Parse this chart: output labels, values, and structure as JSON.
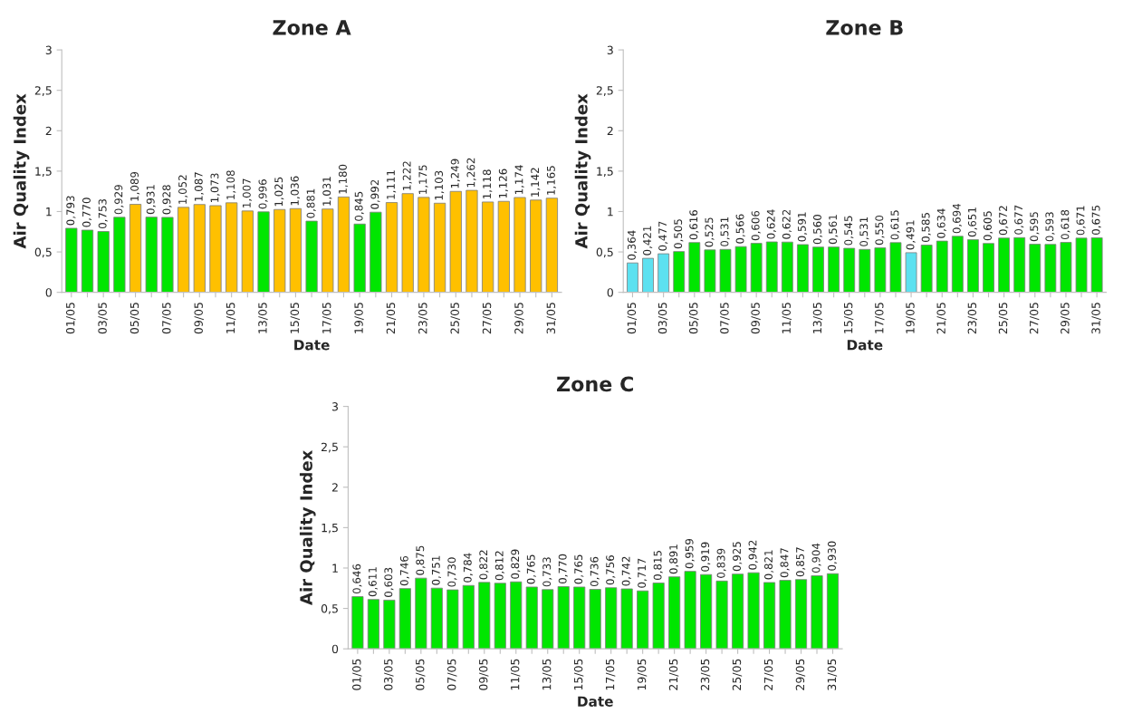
{
  "chart_data": [
    {
      "type": "bar",
      "title": "Zone A",
      "xlabel": "Date",
      "ylabel": "Air Quality Index",
      "categories": [
        "01/05",
        null,
        "03/05",
        null,
        "05/05",
        null,
        "07/05",
        null,
        "09/05",
        null,
        "11/05",
        null,
        "13/05",
        null,
        "15/05",
        null,
        "17/05",
        null,
        "19/05",
        null,
        "21/05",
        null,
        "23/05",
        null,
        "25/05",
        null,
        "27/05",
        null,
        "29/05",
        null,
        "31/05"
      ],
      "values": [
        0.793,
        0.77,
        0.753,
        0.929,
        1.089,
        0.931,
        0.928,
        1.052,
        1.087,
        1.073,
        1.108,
        1.007,
        0.996,
        1.025,
        1.036,
        0.881,
        1.031,
        1.18,
        0.845,
        0.992,
        1.111,
        1.222,
        1.175,
        1.103,
        1.249,
        1.262,
        1.118,
        1.126,
        1.174,
        1.142,
        1.165
      ],
      "value_labels": [
        "0,793",
        "0,770",
        "0,753",
        "0,929",
        "1,089",
        "0,931",
        "0,928",
        "1,052",
        "1,087",
        "1,073",
        "1,108",
        "1,007",
        "0,996",
        "1,025",
        "1,036",
        "0,881",
        "1,031",
        "1,180",
        "0,845",
        "0,992",
        "1,111",
        "1,222",
        "1,175",
        "1,103",
        "1,249",
        "1,262",
        "1,118",
        "1,126",
        "1,174",
        "1,142",
        "1,165"
      ],
      "colors": [
        "#00e600",
        "#00e600",
        "#00e600",
        "#00e600",
        "#ffc000",
        "#00e600",
        "#00e600",
        "#ffc000",
        "#ffc000",
        "#ffc000",
        "#ffc000",
        "#ffc000",
        "#00e600",
        "#ffc000",
        "#ffc000",
        "#00e600",
        "#ffc000",
        "#ffc000",
        "#00e600",
        "#00e600",
        "#ffc000",
        "#ffc000",
        "#ffc000",
        "#ffc000",
        "#ffc000",
        "#ffc000",
        "#ffc000",
        "#ffc000",
        "#ffc000",
        "#ffc000",
        "#ffc000"
      ],
      "ylim": [
        0,
        3
      ],
      "yticks": [
        0,
        {
          "value": 0.5,
          "label": "0,5"
        },
        1,
        {
          "value": 1.5,
          "label": "1,5"
        },
        2,
        {
          "value": 2.5,
          "label": "2,5"
        },
        3
      ],
      "grid": false,
      "legend": false
    },
    {
      "type": "bar",
      "title": "Zone B",
      "xlabel": "Date",
      "ylabel": "Air Quality Index",
      "categories": [
        "01/05",
        null,
        "03/05",
        null,
        "05/05",
        null,
        "07/05",
        null,
        "09/05",
        null,
        "11/05",
        null,
        "13/05",
        null,
        "15/05",
        null,
        "17/05",
        null,
        "19/05",
        null,
        "21/05",
        null,
        "23/05",
        null,
        "25/05",
        null,
        "27/05",
        null,
        "29/05",
        null,
        "31/05"
      ],
      "values": [
        0.364,
        0.421,
        0.477,
        0.505,
        0.616,
        0.525,
        0.531,
        0.566,
        0.606,
        0.624,
        0.622,
        0.591,
        0.56,
        0.561,
        0.545,
        0.531,
        0.55,
        0.615,
        0.491,
        0.585,
        0.634,
        0.694,
        0.651,
        0.605,
        0.672,
        0.677,
        0.595,
        0.593,
        0.618,
        0.671,
        0.675
      ],
      "value_labels": [
        "0,364",
        "0,421",
        "0,477",
        "0,505",
        "0,616",
        "0,525",
        "0,531",
        "0,566",
        "0,606",
        "0,624",
        "0,622",
        "0,591",
        "0,560",
        "0,561",
        "0,545",
        "0,531",
        "0,550",
        "0,615",
        "0,491",
        "0,585",
        "0,634",
        "0,694",
        "0,651",
        "0,605",
        "0,672",
        "0,677",
        "0,595",
        "0,593",
        "0,618",
        "0,671",
        "0,675"
      ],
      "colors": [
        "#5ce1f0",
        "#5ce1f0",
        "#5ce1f0",
        "#00e600",
        "#00e600",
        "#00e600",
        "#00e600",
        "#00e600",
        "#00e600",
        "#00e600",
        "#00e600",
        "#00e600",
        "#00e600",
        "#00e600",
        "#00e600",
        "#00e600",
        "#00e600",
        "#00e600",
        "#5ce1f0",
        "#00e600",
        "#00e600",
        "#00e600",
        "#00e600",
        "#00e600",
        "#00e600",
        "#00e600",
        "#00e600",
        "#00e600",
        "#00e600",
        "#00e600",
        "#00e600"
      ],
      "ylim": [
        0,
        3
      ],
      "yticks": [
        0,
        {
          "value": 0.5,
          "label": "0,5"
        },
        1,
        {
          "value": 1.5,
          "label": "1,5"
        },
        2,
        {
          "value": 2.5,
          "label": "2,5"
        },
        3
      ],
      "grid": false,
      "legend": false
    },
    {
      "type": "bar",
      "title": "Zone C",
      "xlabel": "Date",
      "ylabel": "Air Quality Index",
      "categories": [
        "01/05",
        null,
        "03/05",
        null,
        "05/05",
        null,
        "07/05",
        null,
        "09/05",
        null,
        "11/05",
        null,
        "13/05",
        null,
        "15/05",
        null,
        "17/05",
        null,
        "19/05",
        null,
        "21/05",
        null,
        "23/05",
        null,
        "25/05",
        null,
        "27/05",
        null,
        "29/05",
        null,
        "31/05"
      ],
      "values": [
        0.646,
        0.611,
        0.603,
        0.746,
        0.875,
        0.751,
        0.73,
        0.784,
        0.822,
        0.812,
        0.829,
        0.765,
        0.733,
        0.77,
        0.765,
        0.736,
        0.756,
        0.742,
        0.717,
        0.815,
        0.891,
        0.959,
        0.919,
        0.839,
        0.925,
        0.942,
        0.821,
        0.847,
        0.857,
        0.904,
        0.93
      ],
      "value_labels": [
        "0,646",
        "0,611",
        "0,603",
        "0,746",
        "0,875",
        "0,751",
        "0,730",
        "0,784",
        "0,822",
        "0,812",
        "0,829",
        "0,765",
        "0,733",
        "0,770",
        "0,765",
        "0,736",
        "0,756",
        "0,742",
        "0,717",
        "0,815",
        "0,891",
        "0,959",
        "0,919",
        "0,839",
        "0,925",
        "0,942",
        "0,821",
        "0,847",
        "0,857",
        "0,904",
        "0,930"
      ],
      "colors": [
        "#00e600",
        "#00e600",
        "#00e600",
        "#00e600",
        "#00e600",
        "#00e600",
        "#00e600",
        "#00e600",
        "#00e600",
        "#00e600",
        "#00e600",
        "#00e600",
        "#00e600",
        "#00e600",
        "#00e600",
        "#00e600",
        "#00e600",
        "#00e600",
        "#00e600",
        "#00e600",
        "#00e600",
        "#00e600",
        "#00e600",
        "#00e600",
        "#00e600",
        "#00e600",
        "#00e600",
        "#00e600",
        "#00e600",
        "#00e600",
        "#00e600"
      ],
      "ylim": [
        0,
        3
      ],
      "yticks": [
        0,
        {
          "value": 0.5,
          "label": "0,5"
        },
        1,
        {
          "value": 1.5,
          "label": "1,5"
        },
        2,
        {
          "value": 2.5,
          "label": "2,5"
        },
        3
      ],
      "grid": false,
      "legend": false
    }
  ]
}
